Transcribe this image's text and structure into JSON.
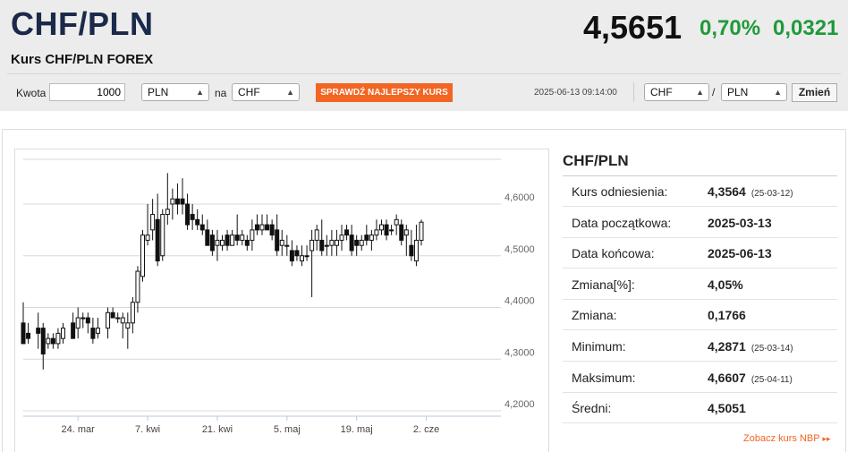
{
  "header": {
    "title": "CHF/PLN",
    "subtitle": "Kurs CHF/PLN FOREX",
    "rate": "4,5651",
    "change_pct": "0,70%",
    "change_abs": "0,0321",
    "change_color": "#1f9a3a"
  },
  "converter": {
    "amount_label": "Kwota",
    "amount_value": "1000",
    "from_currency": "PLN",
    "to_label": "na",
    "to_currency": "CHF",
    "cta_label": "SPRAWDŹ NAJLEPSZY KURS",
    "cta_color": "#f26522"
  },
  "pair_selector": {
    "datetime": "2025-06-13 09:14:00",
    "base": "CHF",
    "separator": "/",
    "quote": "PLN",
    "button_label": "Zmień"
  },
  "side_panel": {
    "title": "CHF/PLN",
    "rows": [
      {
        "label": "Kurs odniesienia:",
        "value": "4,3564",
        "date": "(25-03-12)"
      },
      {
        "label": "Data początkowa:",
        "value": "2025-03-13",
        "date": ""
      },
      {
        "label": "Data końcowa:",
        "value": "2025-06-13",
        "date": ""
      },
      {
        "label": "Zmiana[%]:",
        "value": "4,05%",
        "date": ""
      },
      {
        "label": "Zmiana:",
        "value": "0,1766",
        "date": ""
      },
      {
        "label": "Minimum:",
        "value": "4,2871",
        "date": "(25-03-14)"
      },
      {
        "label": "Maksimum:",
        "value": "4,6607",
        "date": "(25-04-11)"
      },
      {
        "label": "Średni:",
        "value": "4,5051",
        "date": ""
      }
    ],
    "link_label": "Zobacz kurs NBP",
    "link_arrow": "▸▸"
  },
  "chart_data": {
    "type": "candlestick",
    "y_ticks": [
      "4,6000",
      "4,5000",
      "4,4000",
      "4,3000",
      "4,2000"
    ],
    "y_tick_values": [
      4.6,
      4.5,
      4.4,
      4.3,
      4.2
    ],
    "ylim": [
      4.2,
      4.68
    ],
    "x_ticks": [
      "24. mar",
      "7. kwi",
      "21. kwi",
      "5. maj",
      "19. maj",
      "2. cze"
    ],
    "x_tick_days": [
      11,
      25,
      39,
      53,
      67,
      81
    ],
    "x_range_days": [
      0,
      96
    ],
    "grid": true,
    "up_color": "#ffffff",
    "down_color": "#111111",
    "candles": [
      {
        "d": 0,
        "o": 4.37,
        "h": 4.41,
        "l": 4.33,
        "c": 4.33
      },
      {
        "d": 1,
        "o": 4.35,
        "h": 4.37,
        "l": 4.33,
        "c": 4.34
      },
      {
        "d": 3,
        "o": 4.36,
        "h": 4.39,
        "l": 4.32,
        "c": 4.35
      },
      {
        "d": 4,
        "o": 4.36,
        "h": 4.37,
        "l": 4.28,
        "c": 4.31
      },
      {
        "d": 5,
        "o": 4.33,
        "h": 4.35,
        "l": 4.32,
        "c": 4.34
      },
      {
        "d": 6,
        "o": 4.34,
        "h": 4.35,
        "l": 4.32,
        "c": 4.33
      },
      {
        "d": 7,
        "o": 4.33,
        "h": 4.36,
        "l": 4.32,
        "c": 4.35
      },
      {
        "d": 8,
        "o": 4.34,
        "h": 4.37,
        "l": 4.33,
        "c": 4.36
      },
      {
        "d": 10,
        "o": 4.37,
        "h": 4.39,
        "l": 4.34,
        "c": 4.34
      },
      {
        "d": 11,
        "o": 4.36,
        "h": 4.4,
        "l": 4.34,
        "c": 4.38
      },
      {
        "d": 12,
        "o": 4.38,
        "h": 4.39,
        "l": 4.36,
        "c": 4.38
      },
      {
        "d": 13,
        "o": 4.38,
        "h": 4.39,
        "l": 4.35,
        "c": 4.37
      },
      {
        "d": 14,
        "o": 4.36,
        "h": 4.38,
        "l": 4.33,
        "c": 4.34
      },
      {
        "d": 15,
        "o": 4.35,
        "h": 4.38,
        "l": 4.34,
        "c": 4.36
      },
      {
        "d": 17,
        "o": 4.36,
        "h": 4.4,
        "l": 4.34,
        "c": 4.39
      },
      {
        "d": 18,
        "o": 4.39,
        "h": 4.4,
        "l": 4.38,
        "c": 4.38
      },
      {
        "d": 19,
        "o": 4.38,
        "h": 4.39,
        "l": 4.37,
        "c": 4.38
      },
      {
        "d": 20,
        "o": 4.37,
        "h": 4.39,
        "l": 4.34,
        "c": 4.38
      },
      {
        "d": 21,
        "o": 4.36,
        "h": 4.39,
        "l": 4.32,
        "c": 4.37
      },
      {
        "d": 22,
        "o": 4.37,
        "h": 4.42,
        "l": 4.35,
        "c": 4.41
      },
      {
        "d": 23,
        "o": 4.41,
        "h": 4.48,
        "l": 4.39,
        "c": 4.47
      },
      {
        "d": 24,
        "o": 4.46,
        "h": 4.55,
        "l": 4.45,
        "c": 4.54
      },
      {
        "d": 25,
        "o": 4.53,
        "h": 4.6,
        "l": 4.52,
        "c": 4.54
      },
      {
        "d": 26,
        "o": 4.55,
        "h": 4.61,
        "l": 4.53,
        "c": 4.58
      },
      {
        "d": 27,
        "o": 4.57,
        "h": 4.62,
        "l": 4.48,
        "c": 4.49
      },
      {
        "d": 28,
        "o": 4.5,
        "h": 4.59,
        "l": 4.49,
        "c": 4.58
      },
      {
        "d": 29,
        "o": 4.58,
        "h": 4.66,
        "l": 4.56,
        "c": 4.59
      },
      {
        "d": 30,
        "o": 4.6,
        "h": 4.63,
        "l": 4.57,
        "c": 4.61
      },
      {
        "d": 31,
        "o": 4.61,
        "h": 4.64,
        "l": 4.58,
        "c": 4.6
      },
      {
        "d": 32,
        "o": 4.61,
        "h": 4.65,
        "l": 4.58,
        "c": 4.6
      },
      {
        "d": 33,
        "o": 4.6,
        "h": 4.62,
        "l": 4.55,
        "c": 4.56
      },
      {
        "d": 34,
        "o": 4.58,
        "h": 4.6,
        "l": 4.55,
        "c": 4.57
      },
      {
        "d": 35,
        "o": 4.57,
        "h": 4.59,
        "l": 4.55,
        "c": 4.56
      },
      {
        "d": 36,
        "o": 4.56,
        "h": 4.58,
        "l": 4.54,
        "c": 4.55
      },
      {
        "d": 37,
        "o": 4.55,
        "h": 4.57,
        "l": 4.52,
        "c": 4.52
      },
      {
        "d": 38,
        "o": 4.54,
        "h": 4.55,
        "l": 4.5,
        "c": 4.51
      },
      {
        "d": 39,
        "o": 4.52,
        "h": 4.55,
        "l": 4.49,
        "c": 4.53
      },
      {
        "d": 40,
        "o": 4.52,
        "h": 4.54,
        "l": 4.51,
        "c": 4.53
      },
      {
        "d": 41,
        "o": 4.54,
        "h": 4.55,
        "l": 4.51,
        "c": 4.52
      },
      {
        "d": 42,
        "o": 4.52,
        "h": 4.55,
        "l": 4.52,
        "c": 4.54
      },
      {
        "d": 43,
        "o": 4.54,
        "h": 4.58,
        "l": 4.52,
        "c": 4.53
      },
      {
        "d": 44,
        "o": 4.53,
        "h": 4.55,
        "l": 4.52,
        "c": 4.54
      },
      {
        "d": 45,
        "o": 4.53,
        "h": 4.54,
        "l": 4.51,
        "c": 4.52
      },
      {
        "d": 46,
        "o": 4.53,
        "h": 4.57,
        "l": 4.51,
        "c": 4.55
      },
      {
        "d": 47,
        "o": 4.56,
        "h": 4.58,
        "l": 4.54,
        "c": 4.55
      },
      {
        "d": 48,
        "o": 4.55,
        "h": 4.58,
        "l": 4.54,
        "c": 4.56
      },
      {
        "d": 49,
        "o": 4.56,
        "h": 4.58,
        "l": 4.55,
        "c": 4.55
      },
      {
        "d": 50,
        "o": 4.56,
        "h": 4.57,
        "l": 4.53,
        "c": 4.54
      },
      {
        "d": 51,
        "o": 4.55,
        "h": 4.58,
        "l": 4.5,
        "c": 4.51
      },
      {
        "d": 52,
        "o": 4.52,
        "h": 4.55,
        "l": 4.5,
        "c": 4.53
      },
      {
        "d": 53,
        "o": 4.52,
        "h": 4.54,
        "l": 4.5,
        "c": 4.52
      },
      {
        "d": 54,
        "o": 4.51,
        "h": 4.53,
        "l": 4.48,
        "c": 4.49
      },
      {
        "d": 55,
        "o": 4.51,
        "h": 4.52,
        "l": 4.49,
        "c": 4.5
      },
      {
        "d": 56,
        "o": 4.49,
        "h": 4.52,
        "l": 4.48,
        "c": 4.5
      },
      {
        "d": 57,
        "o": 4.5,
        "h": 4.52,
        "l": 4.49,
        "c": 4.5
      },
      {
        "d": 58,
        "o": 4.51,
        "h": 4.55,
        "l": 4.42,
        "c": 4.53
      },
      {
        "d": 59,
        "o": 4.53,
        "h": 4.56,
        "l": 4.51,
        "c": 4.55
      },
      {
        "d": 60,
        "o": 4.53,
        "h": 4.57,
        "l": 4.5,
        "c": 4.51
      },
      {
        "d": 61,
        "o": 4.52,
        "h": 4.54,
        "l": 4.5,
        "c": 4.52
      },
      {
        "d": 62,
        "o": 4.52,
        "h": 4.55,
        "l": 4.5,
        "c": 4.53
      },
      {
        "d": 63,
        "o": 4.52,
        "h": 4.55,
        "l": 4.5,
        "c": 4.53
      },
      {
        "d": 64,
        "o": 4.53,
        "h": 4.56,
        "l": 4.51,
        "c": 4.54
      },
      {
        "d": 65,
        "o": 4.55,
        "h": 4.56,
        "l": 4.53,
        "c": 4.54
      },
      {
        "d": 66,
        "o": 4.54,
        "h": 4.56,
        "l": 4.5,
        "c": 4.51
      },
      {
        "d": 67,
        "o": 4.53,
        "h": 4.54,
        "l": 4.5,
        "c": 4.52
      },
      {
        "d": 68,
        "o": 4.52,
        "h": 4.54,
        "l": 4.51,
        "c": 4.53
      },
      {
        "d": 69,
        "o": 4.54,
        "h": 4.56,
        "l": 4.52,
        "c": 4.53
      },
      {
        "d": 70,
        "o": 4.53,
        "h": 4.55,
        "l": 4.51,
        "c": 4.54
      },
      {
        "d": 71,
        "o": 4.54,
        "h": 4.57,
        "l": 4.53,
        "c": 4.55
      },
      {
        "d": 72,
        "o": 4.55,
        "h": 4.57,
        "l": 4.54,
        "c": 4.56
      },
      {
        "d": 73,
        "o": 4.56,
        "h": 4.57,
        "l": 4.53,
        "c": 4.54
      },
      {
        "d": 74,
        "o": 4.55,
        "h": 4.56,
        "l": 4.54,
        "c": 4.55
      },
      {
        "d": 75,
        "o": 4.56,
        "h": 4.58,
        "l": 4.54,
        "c": 4.57
      },
      {
        "d": 76,
        "o": 4.56,
        "h": 4.57,
        "l": 4.52,
        "c": 4.53
      },
      {
        "d": 77,
        "o": 4.54,
        "h": 4.56,
        "l": 4.5,
        "c": 4.55
      },
      {
        "d": 78,
        "o": 4.52,
        "h": 4.55,
        "l": 4.49,
        "c": 4.5
      },
      {
        "d": 79,
        "o": 4.49,
        "h": 4.56,
        "l": 4.48,
        "c": 4.53
      },
      {
        "d": 80,
        "o": 4.53,
        "h": 4.57,
        "l": 4.52,
        "c": 4.565
      }
    ]
  }
}
